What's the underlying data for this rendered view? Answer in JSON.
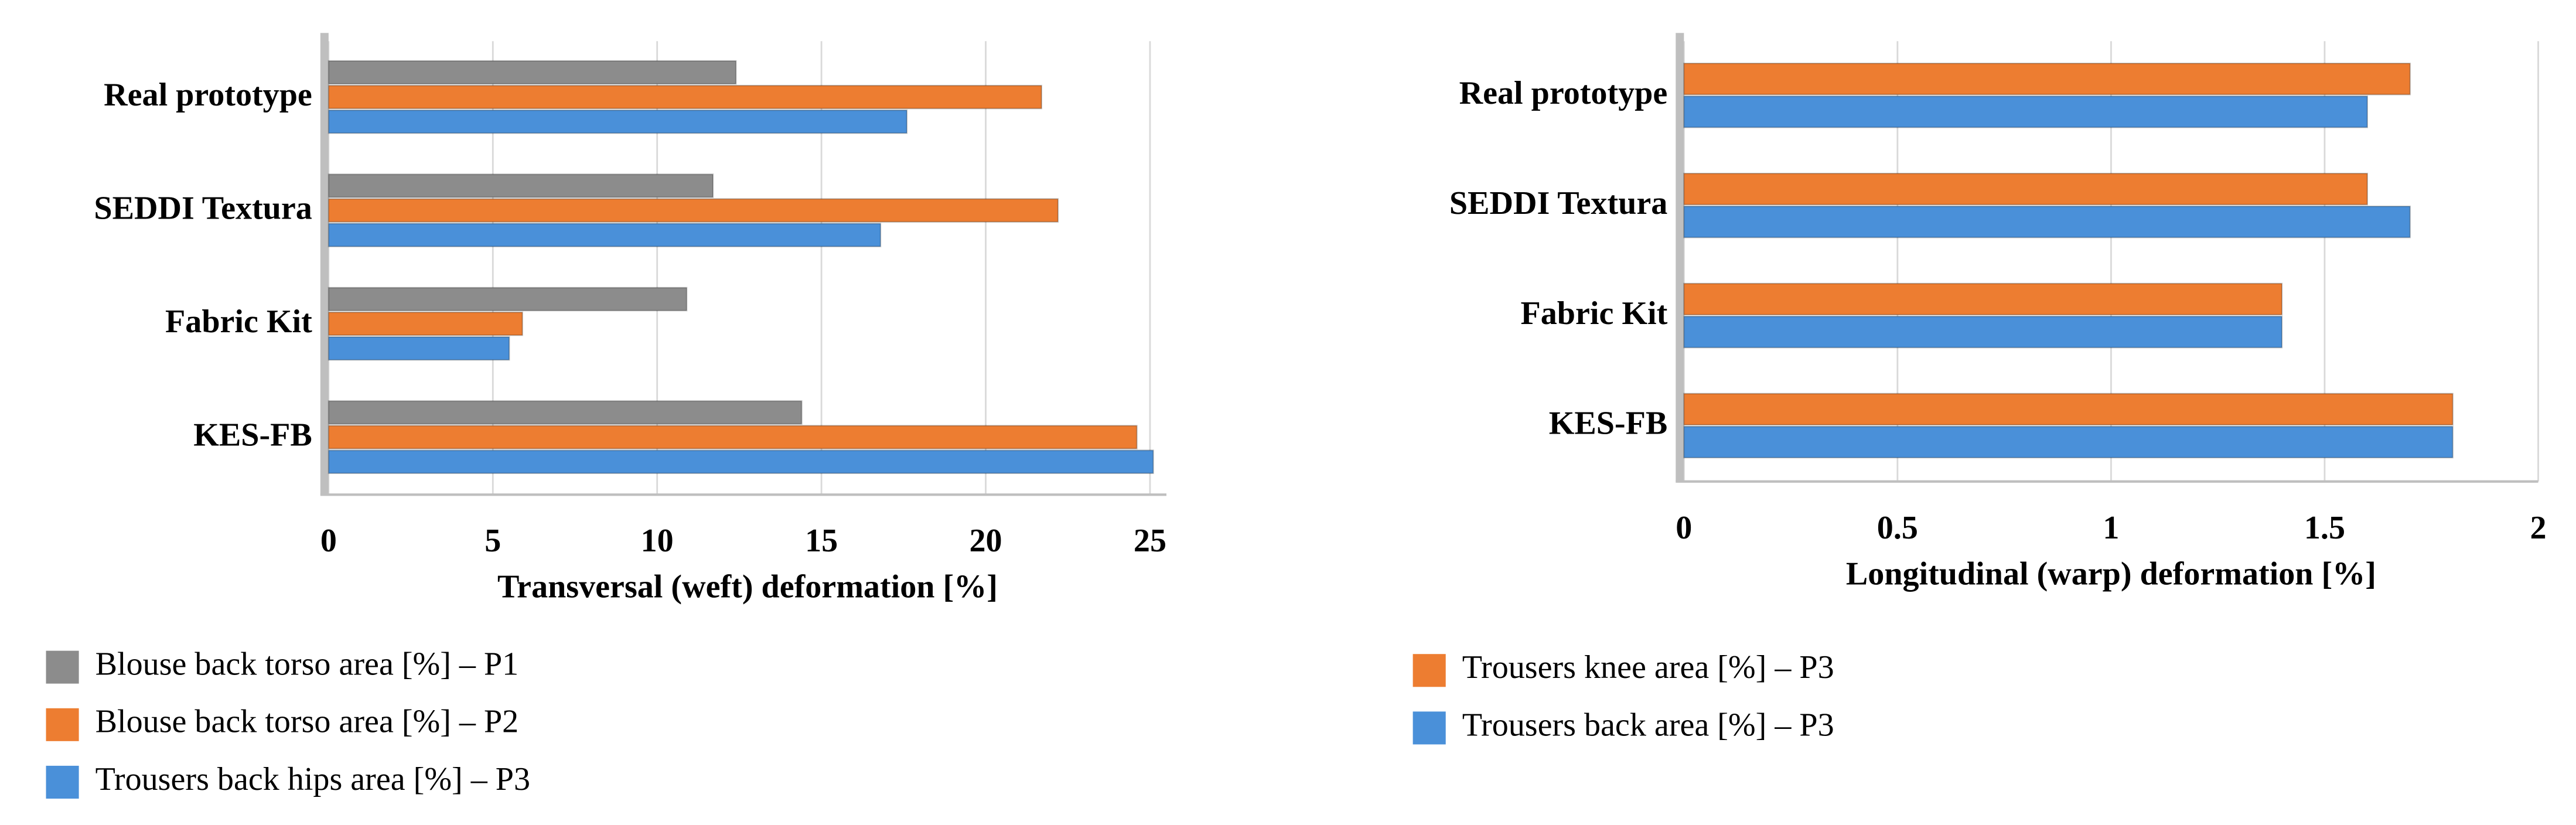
{
  "chart_data": [
    {
      "type": "bar",
      "orientation": "horizontal",
      "xlabel": "Transversal (weft) deformation [%]",
      "categories": [
        "KES-FB",
        "Fabric Kit",
        "SEDDI Textura",
        "Real prototype"
      ],
      "series": [
        {
          "name": "Blouse back torso area [%] – P1",
          "color": "#8c8c8c",
          "values": [
            14.4,
            10.9,
            11.7,
            12.4
          ]
        },
        {
          "name": "Blouse back torso area [%] – P2",
          "color": "#ed7d31",
          "values": [
            24.6,
            5.9,
            22.2,
            21.7
          ]
        },
        {
          "name": "Trousers back hips area [%] – P3",
          "color": "#4a90d9",
          "values": [
            25.1,
            5.5,
            16.8,
            17.6
          ]
        }
      ],
      "xlim": [
        0,
        25.5
      ],
      "xticks": [
        0,
        5,
        10,
        15,
        20,
        25
      ],
      "grid": true
    },
    {
      "type": "bar",
      "orientation": "horizontal",
      "xlabel": "Longitudinal (warp) deformation [%]",
      "categories": [
        "KES-FB",
        "Fabric Kit",
        "SEDDI Textura",
        "Real prototype"
      ],
      "series": [
        {
          "name": "Trousers knee area [%] – P3",
          "color": "#ed7d31",
          "values": [
            1.8,
            1.4,
            1.6,
            1.7
          ]
        },
        {
          "name": "Trousers back area [%] – P3",
          "color": "#4a90d9",
          "values": [
            1.8,
            1.4,
            1.7,
            1.6
          ]
        }
      ],
      "xlim": [
        0,
        2
      ],
      "xticks": [
        0,
        0.5,
        1,
        1.5,
        2
      ],
      "grid": true
    }
  ]
}
